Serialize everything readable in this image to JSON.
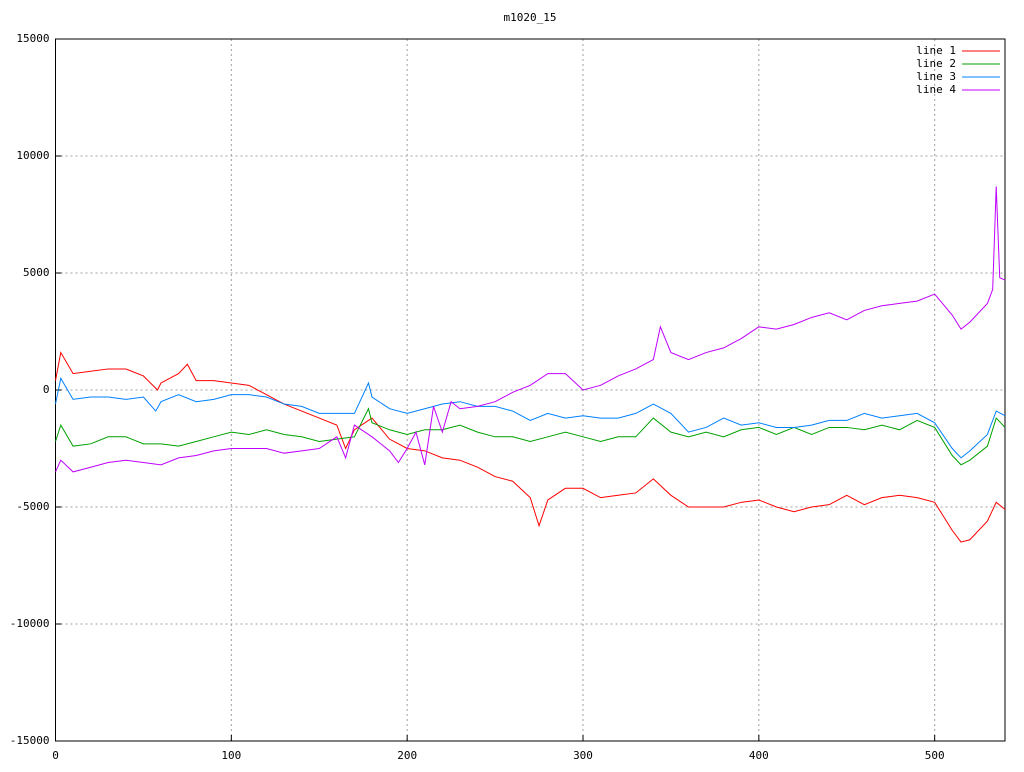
{
  "chart_data": {
    "type": "line",
    "title": "m1020_15",
    "xlim": [
      0,
      540
    ],
    "xticks": [
      0,
      100,
      200,
      300,
      400,
      500
    ],
    "ylim": [
      -15000,
      15000
    ],
    "yticks": [
      -15000,
      -10000,
      -5000,
      0,
      5000,
      10000,
      15000
    ],
    "grid": true,
    "legend": "top-right",
    "series": [
      {
        "name": "line 1",
        "color": "#ff0000",
        "x": [
          0,
          3,
          10,
          20,
          30,
          40,
          50,
          58,
          60,
          70,
          75,
          80,
          90,
          100,
          110,
          120,
          130,
          140,
          150,
          160,
          165,
          170,
          180,
          190,
          200,
          210,
          220,
          230,
          240,
          250,
          260,
          270,
          275,
          280,
          290,
          300,
          310,
          320,
          330,
          340,
          350,
          360,
          370,
          380,
          390,
          400,
          410,
          420,
          430,
          440,
          450,
          460,
          470,
          480,
          490,
          500,
          510,
          515,
          520,
          530,
          535,
          540
        ],
        "values": [
          400,
          1600,
          700,
          800,
          900,
          900,
          600,
          0,
          300,
          700,
          1100,
          400,
          400,
          300,
          200,
          -200,
          -600,
          -900,
          -1200,
          -1500,
          -2500,
          -1700,
          -1200,
          -2100,
          -2500,
          -2600,
          -2900,
          -3000,
          -3300,
          -3700,
          -3900,
          -4600,
          -5800,
          -4700,
          -4200,
          -4200,
          -4600,
          -4500,
          -4400,
          -3800,
          -4500,
          -5000,
          -5000,
          -5000,
          -4800,
          -4700,
          -5000,
          -5200,
          -5000,
          -4900,
          -4500,
          -4900,
          -4600,
          -4500,
          -4600,
          -4800,
          -6000,
          -6500,
          -6400,
          -5600,
          -4800,
          -5100
        ]
      },
      {
        "name": "line 2",
        "color": "#00a000",
        "x": [
          0,
          3,
          10,
          20,
          30,
          40,
          50,
          60,
          70,
          80,
          90,
          100,
          110,
          120,
          130,
          140,
          150,
          160,
          170,
          178,
          180,
          190,
          200,
          210,
          220,
          230,
          240,
          250,
          260,
          270,
          280,
          290,
          300,
          310,
          320,
          330,
          340,
          350,
          360,
          370,
          380,
          390,
          400,
          410,
          420,
          430,
          440,
          450,
          460,
          470,
          480,
          490,
          500,
          510,
          515,
          520,
          530,
          535,
          540
        ],
        "values": [
          -2200,
          -1500,
          -2400,
          -2300,
          -2000,
          -2000,
          -2300,
          -2300,
          -2400,
          -2200,
          -2000,
          -1800,
          -1900,
          -1700,
          -1900,
          -2000,
          -2200,
          -2100,
          -2000,
          -800,
          -1400,
          -1700,
          -1900,
          -1700,
          -1700,
          -1500,
          -1800,
          -2000,
          -2000,
          -2200,
          -2000,
          -1800,
          -2000,
          -2200,
          -2000,
          -2000,
          -1200,
          -1800,
          -2000,
          -1800,
          -2000,
          -1700,
          -1600,
          -1900,
          -1600,
          -1900,
          -1600,
          -1600,
          -1700,
          -1500,
          -1700,
          -1300,
          -1600,
          -2800,
          -3200,
          -3000,
          -2400,
          -1200,
          -1600
        ]
      },
      {
        "name": "line 3",
        "color": "#0080ff",
        "x": [
          0,
          3,
          10,
          20,
          30,
          40,
          50,
          57,
          60,
          70,
          80,
          90,
          100,
          110,
          120,
          130,
          140,
          150,
          160,
          170,
          178,
          180,
          190,
          200,
          210,
          220,
          230,
          240,
          250,
          260,
          270,
          280,
          290,
          300,
          310,
          320,
          330,
          340,
          350,
          360,
          370,
          380,
          390,
          400,
          410,
          420,
          430,
          440,
          450,
          460,
          470,
          480,
          490,
          500,
          510,
          515,
          520,
          530,
          535,
          540
        ],
        "values": [
          -600,
          500,
          -400,
          -300,
          -300,
          -400,
          -300,
          -900,
          -500,
          -200,
          -500,
          -400,
          -200,
          -200,
          -300,
          -600,
          -700,
          -1000,
          -1000,
          -1000,
          300,
          -300,
          -800,
          -1000,
          -800,
          -600,
          -500,
          -700,
          -700,
          -900,
          -1300,
          -1000,
          -1200,
          -1100,
          -1200,
          -1200,
          -1000,
          -600,
          -1000,
          -1800,
          -1600,
          -1200,
          -1500,
          -1400,
          -1600,
          -1600,
          -1500,
          -1300,
          -1300,
          -1000,
          -1200,
          -1100,
          -1000,
          -1400,
          -2500,
          -2900,
          -2600,
          -1900,
          -900,
          -1100
        ]
      },
      {
        "name": "line 4",
        "color": "#c000ff",
        "x": [
          0,
          3,
          10,
          20,
          30,
          40,
          50,
          60,
          70,
          80,
          90,
          100,
          110,
          120,
          130,
          140,
          150,
          160,
          165,
          170,
          180,
          190,
          195,
          200,
          205,
          210,
          215,
          220,
          225,
          230,
          240,
          250,
          260,
          270,
          280,
          290,
          300,
          310,
          320,
          330,
          340,
          344,
          350,
          360,
          370,
          380,
          390,
          400,
          410,
          420,
          430,
          440,
          450,
          460,
          470,
          480,
          490,
          500,
          510,
          515,
          520,
          530,
          533,
          535,
          537,
          540
        ],
        "values": [
          -3500,
          -3000,
          -3500,
          -3300,
          -3100,
          -3000,
          -3100,
          -3200,
          -2900,
          -2800,
          -2600,
          -2500,
          -2500,
          -2500,
          -2700,
          -2600,
          -2500,
          -2000,
          -2900,
          -1500,
          -2000,
          -2600,
          -3100,
          -2500,
          -1800,
          -3200,
          -700,
          -1800,
          -500,
          -800,
          -700,
          -500,
          -100,
          200,
          700,
          700,
          0,
          200,
          600,
          900,
          1300,
          2700,
          1600,
          1300,
          1600,
          1800,
          2200,
          2700,
          2600,
          2800,
          3100,
          3300,
          3000,
          3400,
          3600,
          3700,
          3800,
          4100,
          3200,
          2600,
          2900,
          3700,
          4300,
          8700,
          4800,
          4700
        ]
      }
    ]
  }
}
